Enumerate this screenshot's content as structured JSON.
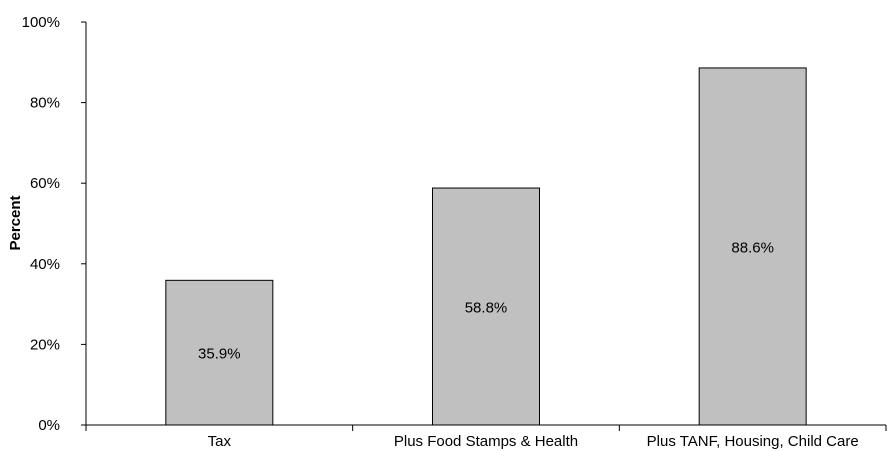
{
  "chart_data": {
    "type": "bar",
    "title": "",
    "xlabel": "",
    "ylabel": "Percent",
    "categories": [
      "Tax",
      "Plus Food Stamps & Health",
      "Plus TANF, Housing, Child Care"
    ],
    "values": [
      35.9,
      58.8,
      88.6
    ],
    "value_labels": [
      "35.9%",
      "58.8%",
      "88.6%"
    ],
    "ylim": [
      0,
      100
    ],
    "yticks": [
      0,
      20,
      40,
      60,
      80,
      100
    ],
    "ytick_labels": [
      "0%",
      "20%",
      "40%",
      "60%",
      "80%",
      "100%"
    ],
    "grid": false,
    "legend": "none",
    "colors": {
      "bar_fill": "#c0c0c0",
      "bar_stroke": "#000000",
      "axis": "#000000"
    }
  }
}
